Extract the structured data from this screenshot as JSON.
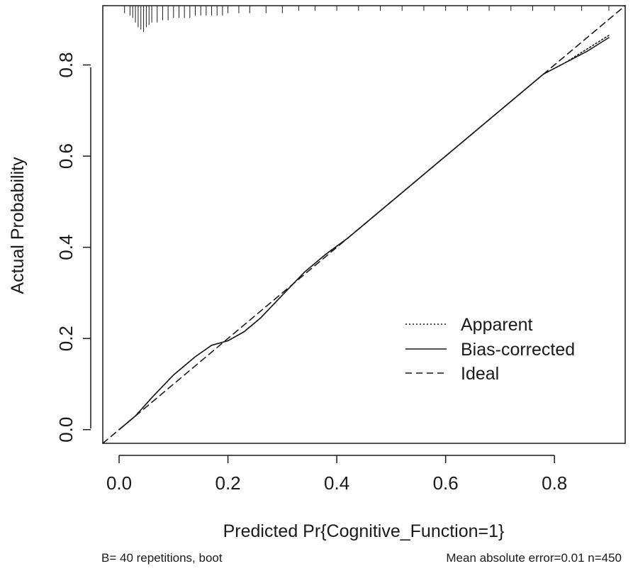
{
  "chart_data": {
    "type": "line",
    "title": "",
    "xlabel": "Predicted Pr{Cognitive_Function=1}",
    "ylabel": "Actual Probability",
    "xlim": [
      -0.03,
      0.93
    ],
    "ylim": [
      -0.03,
      0.93
    ],
    "x_ticks": [
      0.0,
      0.2,
      0.4,
      0.6,
      0.8
    ],
    "x_tick_labels": [
      "0.0",
      "0.2",
      "0.4",
      "0.6",
      "0.8"
    ],
    "y_ticks": [
      0.0,
      0.2,
      0.4,
      0.6,
      0.8
    ],
    "y_tick_labels": [
      "0.0",
      "0.2",
      "0.4",
      "0.6",
      "0.8"
    ],
    "grid": false,
    "legend_position": "bottom-right",
    "series": [
      {
        "name": "Apparent",
        "style": "dotted",
        "x": [
          0.0,
          0.03,
          0.06,
          0.1,
          0.14,
          0.17,
          0.2,
          0.23,
          0.26,
          0.3,
          0.34,
          0.38,
          0.42,
          0.46,
          0.5,
          0.54,
          0.58,
          0.62,
          0.66,
          0.7,
          0.74,
          0.78,
          0.82,
          0.86,
          0.9
        ],
        "y": [
          0.0,
          0.03,
          0.07,
          0.12,
          0.16,
          0.185,
          0.195,
          0.215,
          0.245,
          0.295,
          0.345,
          0.385,
          0.42,
          0.46,
          0.5,
          0.54,
          0.58,
          0.62,
          0.66,
          0.7,
          0.74,
          0.78,
          0.805,
          0.835,
          0.865
        ]
      },
      {
        "name": "Bias-corrected",
        "style": "solid",
        "x": [
          0.0,
          0.03,
          0.06,
          0.1,
          0.14,
          0.17,
          0.2,
          0.23,
          0.26,
          0.3,
          0.34,
          0.38,
          0.42,
          0.46,
          0.5,
          0.54,
          0.58,
          0.62,
          0.66,
          0.7,
          0.74,
          0.78,
          0.82,
          0.86,
          0.9
        ],
        "y": [
          0.0,
          0.03,
          0.07,
          0.12,
          0.16,
          0.185,
          0.195,
          0.215,
          0.245,
          0.295,
          0.345,
          0.385,
          0.42,
          0.46,
          0.5,
          0.54,
          0.58,
          0.62,
          0.66,
          0.7,
          0.74,
          0.78,
          0.805,
          0.83,
          0.86
        ]
      },
      {
        "name": "Ideal",
        "style": "dashed",
        "x": [
          -0.03,
          0.93
        ],
        "y": [
          -0.03,
          0.93
        ]
      }
    ],
    "rug_x": [
      0.01,
      0.02,
      0.025,
      0.03,
      0.035,
      0.04,
      0.045,
      0.05,
      0.055,
      0.06,
      0.07,
      0.08,
      0.09,
      0.1,
      0.11,
      0.12,
      0.13,
      0.14,
      0.15,
      0.16,
      0.17,
      0.18,
      0.19,
      0.2,
      0.22,
      0.24,
      0.27,
      0.3,
      0.33,
      0.36,
      0.4,
      0.44,
      0.48,
      0.52,
      0.56,
      0.6,
      0.64,
      0.68,
      0.72,
      0.76,
      0.8,
      0.85,
      0.9
    ],
    "rug_counts": [
      2,
      3,
      4,
      6,
      8,
      9,
      10,
      8,
      7,
      6,
      6,
      5,
      5,
      4,
      4,
      4,
      4,
      3,
      3,
      3,
      3,
      3,
      3,
      2,
      2,
      2,
      2,
      2,
      1,
      1,
      1,
      1,
      1,
      1,
      1,
      1,
      1,
      1,
      1,
      1,
      1,
      1,
      1
    ],
    "footer_left": "B= 40 repetitions, boot",
    "footer_right": "Mean absolute error=0.01 n=450"
  }
}
